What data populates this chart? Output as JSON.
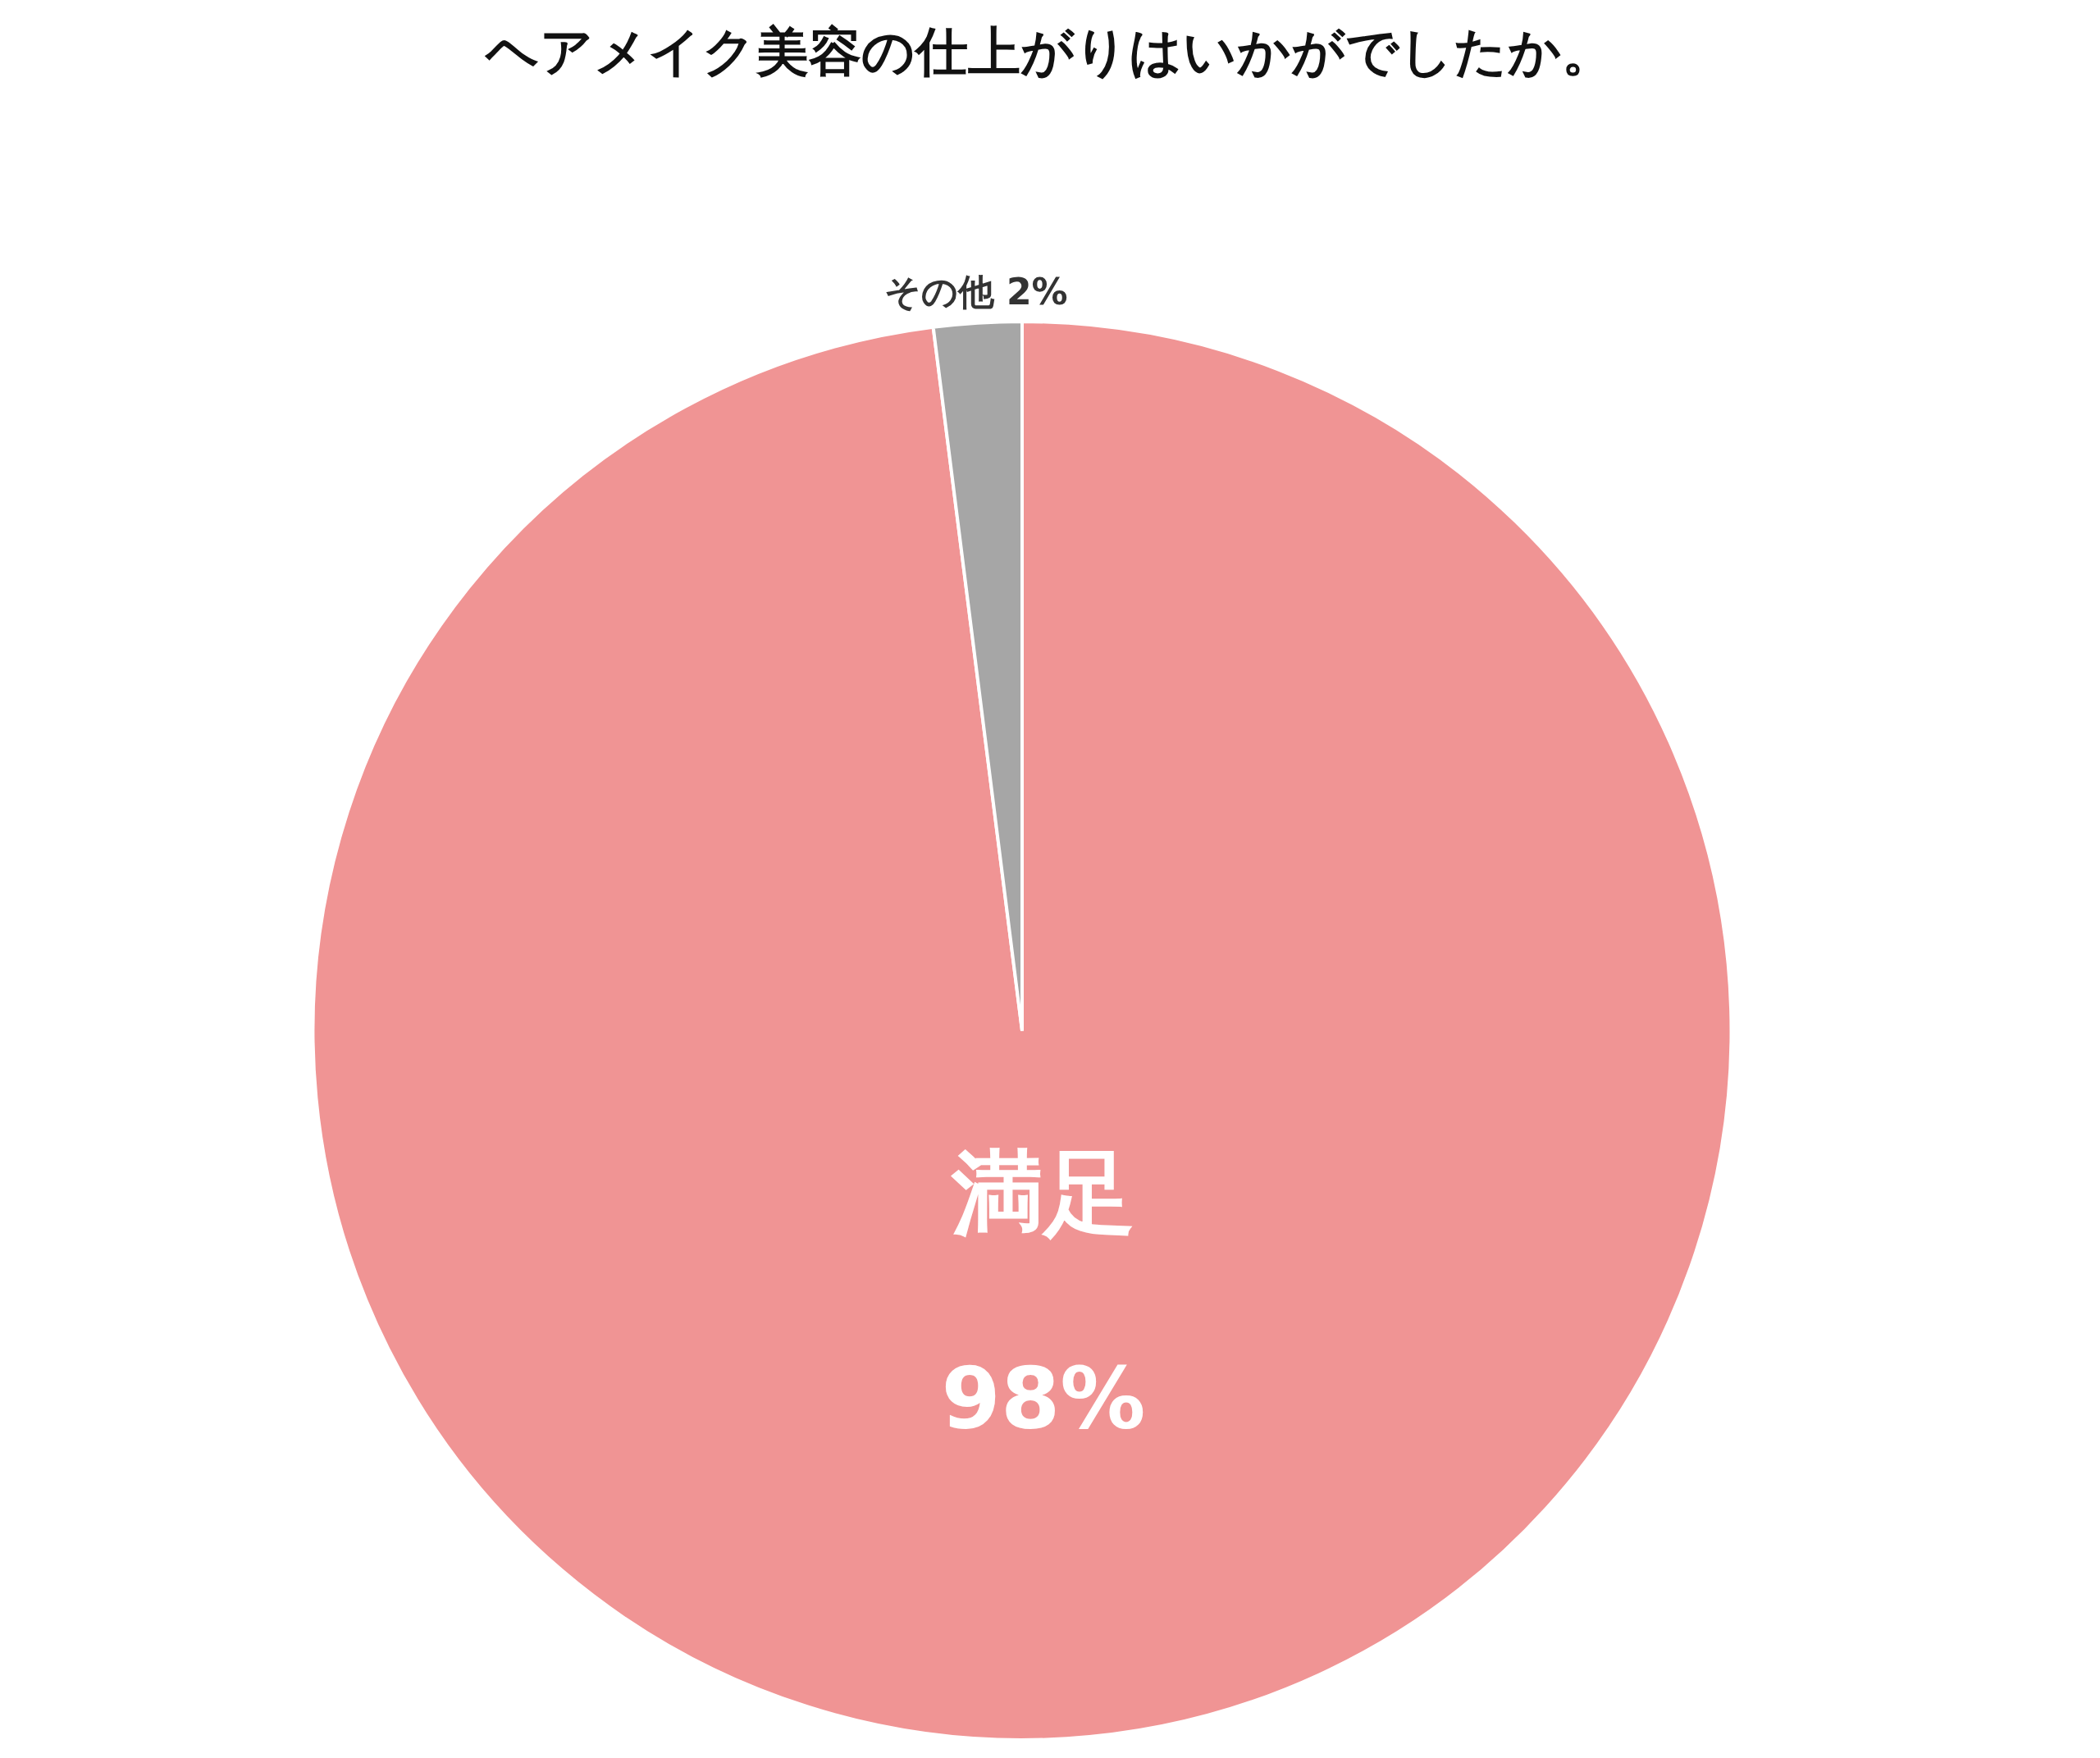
{
  "chart_data": {
    "type": "pie",
    "title": "ヘアメイク美容の仕上がりはいかがでしたか。",
    "categories": [
      "満足",
      "その他"
    ],
    "values": [
      98,
      2
    ],
    "colors": [
      "#f09494",
      "#a6a6a6"
    ],
    "value_labels": [
      "98%",
      "2%"
    ],
    "legend": false
  }
}
